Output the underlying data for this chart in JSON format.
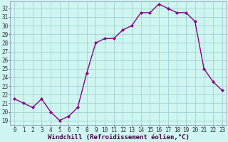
{
  "x": [
    0,
    1,
    2,
    3,
    4,
    5,
    6,
    7,
    8,
    9,
    10,
    11,
    12,
    13,
    14,
    15,
    16,
    17,
    18,
    19,
    20,
    21,
    22,
    23
  ],
  "y": [
    21.5,
    21.0,
    20.5,
    21.5,
    20.0,
    19.0,
    19.5,
    20.5,
    24.5,
    28.0,
    28.5,
    28.5,
    29.5,
    30.0,
    31.5,
    31.5,
    32.5,
    32.0,
    31.5,
    31.5,
    30.5,
    25.0,
    23.5,
    22.5
  ],
  "line_color": "#880088",
  "marker": "D",
  "marker_size": 2.2,
  "line_width": 1.0,
  "xlabel": "Windchill (Refroidissement éolien,°C)",
  "xlabel_fontsize": 6.5,
  "ylabel_ticks": [
    19,
    20,
    21,
    22,
    23,
    24,
    25,
    26,
    27,
    28,
    29,
    30,
    31,
    32
  ],
  "xtick_labels": [
    "0",
    "1",
    "2",
    "3",
    "4",
    "5",
    "6",
    "7",
    "8",
    "9",
    "10",
    "11",
    "12",
    "13",
    "14",
    "15",
    "16",
    "17",
    "18",
    "19",
    "20",
    "21",
    "22",
    "23"
  ],
  "ylim": [
    18.5,
    32.8
  ],
  "xlim": [
    -0.5,
    23.5
  ],
  "bg_color": "#cef5f0",
  "grid_color": "#99cccc",
  "tick_fontsize": 5.5,
  "spine_color": "#9999bb"
}
